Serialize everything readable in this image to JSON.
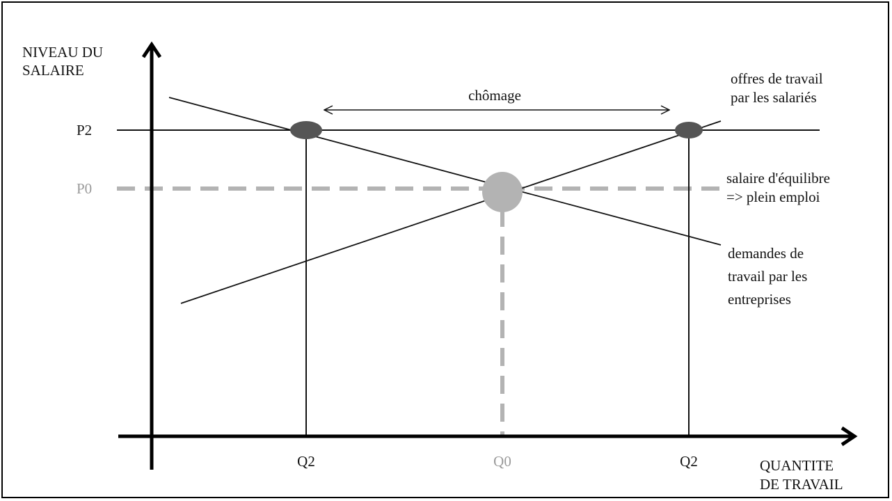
{
  "axes": {
    "y_label_line1": "NIVEAU DU",
    "y_label_line2": "SALAIRE",
    "x_label_line1": "QUANTITE",
    "x_label_line2": "DE TRAVAIL"
  },
  "levels": {
    "p2": "P2",
    "p0": "P0"
  },
  "quantities": {
    "q2_left": "Q2",
    "q0": "Q0",
    "q2_right": "Q2"
  },
  "annotations": {
    "chomage": "chômage",
    "supply_line1": "offres de travail",
    "supply_line2": "par les salariés",
    "equilibrium_line1": "salaire d'équilibre",
    "equilibrium_line2": "=> plein emploi",
    "demand_line1": "demandes de",
    "demand_line2": "travail par les",
    "demand_line3": "entreprises"
  },
  "colors": {
    "ink": "#111111",
    "dark_point": "#555555",
    "equilibrium_gray": "#b3b3b3",
    "equilibrium_text": "#9a9a9a"
  }
}
